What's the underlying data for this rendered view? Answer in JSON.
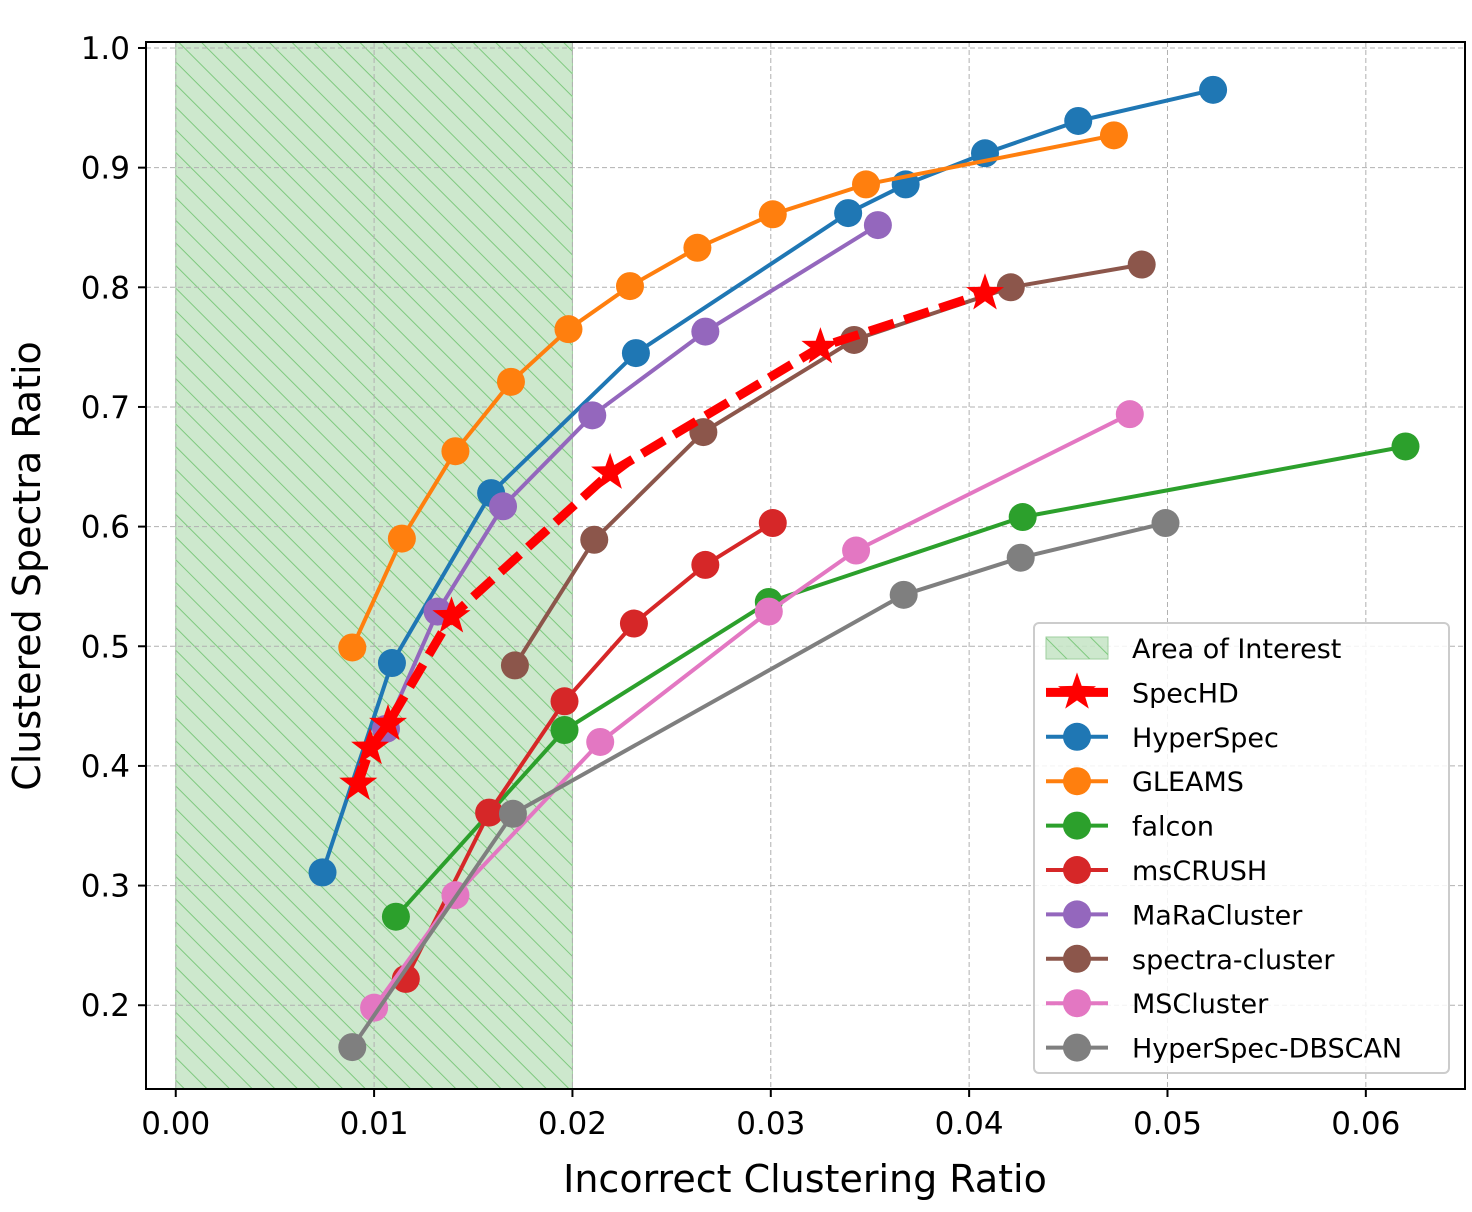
{
  "chart_data": {
    "type": "line",
    "xlabel": "Incorrect Clustering Ratio",
    "ylabel": "Clustered Spectra Ratio",
    "xlim": [
      -0.0015,
      0.065
    ],
    "ylim": [
      0.13,
      1.005
    ],
    "xticks": [
      0.0,
      0.01,
      0.02,
      0.03,
      0.04,
      0.05,
      0.06
    ],
    "xtick_labels": [
      "0.00",
      "0.01",
      "0.02",
      "0.03",
      "0.04",
      "0.05",
      "0.06"
    ],
    "yticks": [
      0.2,
      0.3,
      0.4,
      0.5,
      0.6,
      0.7,
      0.8,
      0.9,
      1.0
    ],
    "ytick_labels": [
      "0.2",
      "0.3",
      "0.4",
      "0.5",
      "0.6",
      "0.7",
      "0.8",
      "0.9",
      "1.0"
    ],
    "grid": true,
    "legend_position": "lower-right",
    "area_of_interest": {
      "name": "Area of Interest",
      "x_range": [
        0.0,
        0.02
      ],
      "color": "#2ca02c"
    },
    "series": [
      {
        "name": "SpecHD",
        "color": "#ff0000",
        "marker": "star",
        "dashed": true,
        "x": [
          0.0092,
          0.0098,
          0.0107,
          0.0139,
          0.0219,
          0.0325,
          0.0408
        ],
        "y": [
          0.385,
          0.415,
          0.435,
          0.525,
          0.645,
          0.75,
          0.795
        ]
      },
      {
        "name": "HyperSpec",
        "color": "#1f77b4",
        "marker": "circle",
        "x": [
          0.0074,
          0.0109,
          0.0159,
          0.0232,
          0.0339,
          0.0368,
          0.0408,
          0.0455,
          0.0523
        ],
        "y": [
          0.311,
          0.486,
          0.628,
          0.745,
          0.862,
          0.886,
          0.912,
          0.939,
          0.965
        ]
      },
      {
        "name": "GLEAMS",
        "color": "#ff7f0e",
        "marker": "circle",
        "x": [
          0.0089,
          0.0114,
          0.0141,
          0.0169,
          0.0198,
          0.0229,
          0.0263,
          0.0301,
          0.0348,
          0.0473
        ],
        "y": [
          0.499,
          0.59,
          0.663,
          0.721,
          0.765,
          0.801,
          0.833,
          0.861,
          0.886,
          0.927
        ]
      },
      {
        "name": "falcon",
        "color": "#2ca02c",
        "marker": "circle",
        "x": [
          0.0111,
          0.0196,
          0.0299,
          0.0427,
          0.062
        ],
        "y": [
          0.274,
          0.43,
          0.537,
          0.608,
          0.667
        ]
      },
      {
        "name": "msCRUSH",
        "color": "#d62728",
        "marker": "circle",
        "x": [
          0.0116,
          0.0158,
          0.0196,
          0.0231,
          0.0267,
          0.0301
        ],
        "y": [
          0.222,
          0.361,
          0.454,
          0.519,
          0.568,
          0.603
        ]
      },
      {
        "name": "MaRaCluster",
        "color": "#9467bd",
        "marker": "circle",
        "x": [
          0.0106,
          0.0132,
          0.0165,
          0.021,
          0.0267,
          0.0354
        ],
        "y": [
          0.431,
          0.529,
          0.617,
          0.693,
          0.763,
          0.852
        ]
      },
      {
        "name": "spectra-cluster",
        "color": "#8c564b",
        "marker": "circle",
        "x": [
          0.0171,
          0.0211,
          0.0266,
          0.0342,
          0.0421,
          0.0487
        ],
        "y": [
          0.484,
          0.589,
          0.679,
          0.756,
          0.8,
          0.819
        ]
      },
      {
        "name": "MSCluster",
        "color": "#e377c2",
        "marker": "circle",
        "x": [
          0.01,
          0.0141,
          0.0214,
          0.0299,
          0.0343,
          0.0481
        ],
        "y": [
          0.198,
          0.292,
          0.42,
          0.529,
          0.58,
          0.694
        ]
      },
      {
        "name": "HyperSpec-DBSCAN",
        "color": "#7f7f7f",
        "marker": "circle",
        "x": [
          0.0089,
          0.017,
          0.0367,
          0.0426,
          0.0499
        ],
        "y": [
          0.165,
          0.36,
          0.543,
          0.574,
          0.603
        ]
      }
    ]
  }
}
